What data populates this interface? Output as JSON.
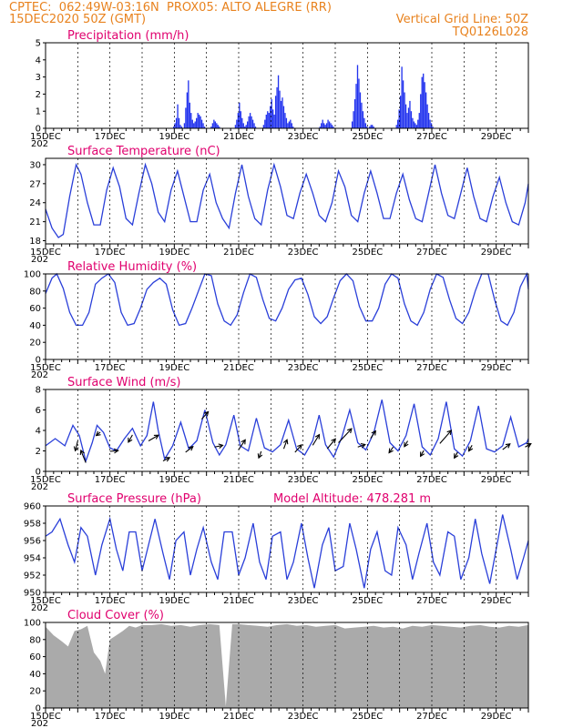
{
  "header": {
    "line1_left": "CPTEC:  062:49W-03:16N  PROX05: ALTO ALEGRE (RR)",
    "line2_left": "15DEC2020 50Z (GMT)",
    "line2_right": "Vertical Grid Line: 50Z",
    "line3_right": "TQ0126L028"
  },
  "x_axis": {
    "tick_labels": [
      "15DEC",
      "17DEC",
      "19DEC",
      "21DEC",
      "23DEC",
      "25DEC",
      "27DEC",
      "29DEC"
    ],
    "year_fragment": "202",
    "range_days": [
      0,
      15
    ],
    "labeled_days": [
      0,
      2,
      4,
      6,
      8,
      10,
      12,
      14
    ]
  },
  "colors": {
    "series": "#2a3fd9",
    "bars": "#2233ee",
    "cloud": "#aaaaaa",
    "title": "#e0006e",
    "header": "#e8821e"
  },
  "chart_data": [
    {
      "id": "precip",
      "type": "bar",
      "title": "Precipitation (mm/h)",
      "ylim": [
        0,
        5
      ],
      "yticks": [
        0,
        1,
        2,
        3,
        4,
        5
      ],
      "x_step_days": 0.0417,
      "values": [
        0,
        0,
        0,
        0,
        0,
        0,
        0,
        0,
        0,
        0,
        0,
        0,
        0,
        0,
        0,
        0,
        0,
        0,
        0,
        0,
        0,
        0,
        0,
        0,
        0,
        0,
        0,
        0,
        0,
        0,
        0,
        0,
        0,
        0,
        0,
        0,
        0,
        0,
        0,
        0,
        0,
        0,
        0,
        0,
        0,
        0,
        0,
        0,
        0,
        0,
        0,
        0,
        0,
        0,
        0,
        0,
        0,
        0,
        0,
        0,
        0,
        0,
        0,
        0,
        0,
        0,
        0,
        0,
        0,
        0,
        0,
        0,
        0,
        0,
        0,
        0,
        0,
        0,
        0,
        0,
        0,
        0,
        0,
        0,
        0,
        0,
        0,
        0,
        0,
        0,
        0,
        0,
        0,
        0,
        0,
        0.1,
        0.3,
        0.6,
        1.4,
        0.6,
        0.2,
        0.1,
        0,
        0.3,
        1.2,
        2.1,
        2.8,
        1.5,
        0.9,
        0.5,
        0.3,
        0.4,
        0.6,
        0.9,
        0.8,
        0.7,
        0.5,
        0.3,
        0.1,
        0,
        0,
        0,
        0,
        0.1,
        0.3,
        0.5,
        0.4,
        0.3,
        0.2,
        0.1,
        0,
        0,
        0,
        0,
        0,
        0,
        0,
        0,
        0,
        0,
        0,
        0.2,
        0.5,
        0.9,
        1.5,
        1.0,
        0.6,
        0.3,
        0.1,
        0.2,
        0.4,
        0.7,
        0.9,
        0.7,
        0.5,
        0.3,
        0.1,
        0,
        0,
        0,
        0,
        0,
        0.2,
        0.5,
        0.8,
        1.0,
        0.9,
        1.3,
        1.7,
        1.1,
        0.8,
        1.9,
        2.4,
        3.1,
        2.2,
        1.6,
        1.8,
        1.3,
        0.9,
        0.6,
        0.3,
        0.4,
        0.5,
        0.3,
        0.1,
        0,
        0,
        0,
        0,
        0,
        0,
        0,
        0,
        0,
        0,
        0,
        0,
        0,
        0,
        0,
        0,
        0,
        0,
        0,
        0.1,
        0.3,
        0.5,
        0.3,
        0.2,
        0.3,
        0.5,
        0.4,
        0.3,
        0.2,
        0.1,
        0,
        0,
        0,
        0,
        0,
        0,
        0,
        0,
        0,
        0,
        0,
        0,
        0,
        0.4,
        1.0,
        1.7,
        2.6,
        3.7,
        2.9,
        2.1,
        1.5,
        1.0,
        0.6,
        0.3,
        0.1,
        0,
        0.1,
        0.2,
        0.2,
        0.1,
        0,
        0,
        0,
        0,
        0,
        0,
        0,
        0,
        0,
        0,
        0,
        0,
        0,
        0,
        0,
        0,
        0.2,
        0.5,
        1.1,
        1.9,
        3.6,
        2.8,
        2.1,
        1.4,
        0.9,
        1.2,
        1.6,
        1.0,
        0.6,
        0.4,
        0.3,
        0.2,
        0.5,
        0.9,
        2.0,
        3.0,
        3.2,
        2.7,
        2.1,
        1.4,
        0.9,
        0.5,
        0.3,
        0.1
      ]
    },
    {
      "id": "temperature",
      "type": "line",
      "title": "Surface Temperature (nC)",
      "ylim": [
        17.5,
        31
      ],
      "yticks": [
        18,
        21,
        24,
        27,
        30
      ],
      "x_days": [
        0,
        0.2,
        0.4,
        0.55,
        0.75,
        0.95,
        1.1,
        1.3,
        1.5,
        1.7,
        1.9,
        2.1,
        2.3,
        2.5,
        2.7,
        2.9,
        3.1,
        3.3,
        3.5,
        3.7,
        3.9,
        4.1,
        4.3,
        4.5,
        4.7,
        4.9,
        5.1,
        5.3,
        5.5,
        5.7,
        5.9,
        6.1,
        6.3,
        6.5,
        6.7,
        6.9,
        7.1,
        7.3,
        7.5,
        7.7,
        7.9,
        8.1,
        8.3,
        8.5,
        8.7,
        8.9,
        9.1,
        9.3,
        9.5,
        9.7,
        9.9,
        10.1,
        10.3,
        10.5,
        10.7,
        10.9,
        11.1,
        11.3,
        11.5,
        11.7,
        11.9,
        12.1,
        12.3,
        12.5,
        12.7,
        12.9,
        13.1,
        13.3,
        13.5,
        13.7,
        13.9,
        14.1,
        14.3,
        14.5,
        14.7,
        14.9,
        15
      ],
      "values": [
        23,
        20,
        18.5,
        19,
        25,
        30,
        28.5,
        24,
        20.5,
        20.5,
        26,
        29.5,
        26.5,
        21.5,
        20.5,
        25.5,
        30,
        27,
        22.5,
        21,
        26,
        29,
        25,
        21,
        21,
        26,
        28.5,
        24,
        21.5,
        20,
        25.5,
        30,
        25,
        21.5,
        20.5,
        26,
        30,
        26.5,
        22,
        21.5,
        25.5,
        28.5,
        25.5,
        22,
        21,
        24,
        29,
        26.5,
        22,
        21,
        25.5,
        29,
        25.5,
        21.5,
        21.5,
        25.5,
        28.5,
        24.5,
        21.5,
        21,
        25.5,
        30,
        25.5,
        22,
        21.5,
        25.5,
        29.5,
        25,
        21.5,
        21,
        25,
        28,
        24,
        21,
        20.5,
        24,
        27
      ]
    },
    {
      "id": "humidity",
      "type": "line",
      "title": "Relative Humidity (%)",
      "ylim": [
        0,
        100
      ],
      "yticks": [
        0,
        20,
        40,
        60,
        80,
        100
      ],
      "x_days": [
        0,
        0.2,
        0.35,
        0.55,
        0.75,
        0.95,
        1.15,
        1.35,
        1.55,
        1.75,
        1.95,
        2.15,
        2.35,
        2.55,
        2.75,
        2.95,
        3.15,
        3.35,
        3.55,
        3.75,
        3.95,
        4.15,
        4.35,
        4.55,
        4.75,
        4.95,
        5.15,
        5.35,
        5.55,
        5.75,
        5.95,
        6.15,
        6.35,
        6.55,
        6.75,
        6.95,
        7.15,
        7.35,
        7.55,
        7.75,
        7.95,
        8.15,
        8.35,
        8.55,
        8.75,
        8.95,
        9.15,
        9.35,
        9.55,
        9.75,
        9.95,
        10.15,
        10.35,
        10.55,
        10.75,
        10.95,
        11.15,
        11.35,
        11.55,
        11.75,
        11.95,
        12.15,
        12.35,
        12.55,
        12.75,
        12.95,
        13.15,
        13.35,
        13.55,
        13.75,
        13.95,
        14.15,
        14.35,
        14.55,
        14.75,
        14.95,
        15
      ],
      "values": [
        77,
        95,
        100,
        83,
        55,
        40,
        40,
        55,
        88,
        95,
        100,
        90,
        55,
        40,
        42,
        60,
        82,
        90,
        95,
        88,
        58,
        40,
        42,
        60,
        80,
        100,
        98,
        65,
        45,
        40,
        52,
        78,
        100,
        96,
        70,
        48,
        45,
        60,
        82,
        93,
        95,
        76,
        50,
        42,
        50,
        72,
        92,
        100,
        92,
        62,
        45,
        45,
        60,
        88,
        100,
        95,
        65,
        45,
        40,
        55,
        82,
        100,
        96,
        70,
        48,
        42,
        55,
        80,
        100,
        100,
        70,
        45,
        40,
        55,
        85,
        100,
        82
      ]
    },
    {
      "id": "wind",
      "type": "line",
      "title": "Surface Wind (m/s)",
      "ylim": [
        0,
        8
      ],
      "yticks": [
        0,
        2,
        4,
        6,
        8
      ],
      "x_days": [
        0,
        0.3,
        0.6,
        0.85,
        1.05,
        1.25,
        1.45,
        1.6,
        1.8,
        2.0,
        2.2,
        2.45,
        2.7,
        2.95,
        3.15,
        3.35,
        3.5,
        3.7,
        3.95,
        4.2,
        4.45,
        4.7,
        4.95,
        5.2,
        5.4,
        5.6,
        5.85,
        6.05,
        6.3,
        6.55,
        6.8,
        7.05,
        7.3,
        7.55,
        7.8,
        8.05,
        8.3,
        8.5,
        8.7,
        8.95,
        9.2,
        9.45,
        9.7,
        9.95,
        10.2,
        10.45,
        10.7,
        10.95,
        11.2,
        11.45,
        11.7,
        11.95,
        12.2,
        12.45,
        12.7,
        12.95,
        13.2,
        13.45,
        13.7,
        13.95,
        14.2,
        14.45,
        14.7,
        14.95,
        15
      ],
      "values": [
        2.5,
        3.2,
        2.5,
        4.5,
        3.5,
        1.0,
        2.8,
        4.5,
        3.8,
        2.3,
        2.0,
        3.2,
        4.2,
        2.5,
        3.5,
        6.8,
        4.0,
        1.2,
        2.5,
        4.8,
        2.2,
        3.0,
        6.0,
        2.8,
        1.6,
        2.6,
        5.5,
        2.5,
        2.0,
        5.2,
        2.3,
        1.9,
        2.6,
        5.0,
        2.2,
        1.6,
        3.0,
        5.5,
        2.6,
        1.4,
        3.3,
        6.0,
        2.8,
        2.1,
        3.8,
        7.0,
        2.8,
        2.0,
        3.5,
        6.6,
        2.4,
        1.6,
        3.2,
        6.8,
        2.2,
        1.5,
        3.0,
        6.4,
        2.2,
        1.9,
        2.5,
        5.3,
        2.4,
        2.8,
        3.2
      ],
      "vectors": [
        {
          "day": 1.0,
          "u": -0.3,
          "v": -1.2
        },
        {
          "day": 1.25,
          "u": -0.6,
          "v": 1.5
        },
        {
          "day": 1.7,
          "u": -0.5,
          "v": -0.4
        },
        {
          "day": 2.0,
          "u": 1.0,
          "v": 0.1
        },
        {
          "day": 2.7,
          "u": -0.5,
          "v": -0.9
        },
        {
          "day": 3.2,
          "u": 1.2,
          "v": 0.7
        },
        {
          "day": 3.65,
          "u": 0.8,
          "v": 0.4
        },
        {
          "day": 4.35,
          "u": 0.9,
          "v": 0.7
        },
        {
          "day": 4.85,
          "u": 0.8,
          "v": 0.9
        },
        {
          "day": 5.25,
          "u": 1.0,
          "v": 0.2
        },
        {
          "day": 6.0,
          "u": 0.8,
          "v": 1.2
        },
        {
          "day": 6.7,
          "u": -0.3,
          "v": -0.8
        },
        {
          "day": 7.4,
          "u": 0.4,
          "v": 1.1
        },
        {
          "day": 7.75,
          "u": 0.8,
          "v": 0.9
        },
        {
          "day": 8.3,
          "u": 0.8,
          "v": 1.3
        },
        {
          "day": 8.75,
          "u": 1.0,
          "v": 1.2
        },
        {
          "day": 9.1,
          "u": 1.6,
          "v": 1.7
        },
        {
          "day": 9.7,
          "u": 0.9,
          "v": 0.3
        },
        {
          "day": 10.1,
          "u": 0.6,
          "v": 0.9
        },
        {
          "day": 10.8,
          "u": -0.5,
          "v": -0.7
        },
        {
          "day": 11.25,
          "u": -0.4,
          "v": -0.7
        },
        {
          "day": 11.75,
          "u": -0.4,
          "v": -0.7
        },
        {
          "day": 12.25,
          "u": 1.4,
          "v": 1.6
        },
        {
          "day": 12.8,
          "u": -0.4,
          "v": -0.7
        },
        {
          "day": 13.25,
          "u": -0.4,
          "v": -0.7
        },
        {
          "day": 14.2,
          "u": 0.9,
          "v": 0.7
        },
        {
          "day": 14.9,
          "u": 0.7,
          "v": 0.4
        }
      ]
    },
    {
      "id": "pressure",
      "type": "line",
      "title": "Surface Pressure (hPa)",
      "annotation": "Model Altitude: 478.281  m",
      "ylim": [
        950,
        960
      ],
      "yticks": [
        950,
        952,
        954,
        956,
        958,
        960
      ],
      "x_days": [
        0,
        0.2,
        0.45,
        0.7,
        0.9,
        1.1,
        1.3,
        1.55,
        1.75,
        2.0,
        2.2,
        2.4,
        2.6,
        2.8,
        3.0,
        3.2,
        3.4,
        3.65,
        3.85,
        4.05,
        4.3,
        4.5,
        4.7,
        4.9,
        5.15,
        5.35,
        5.55,
        5.8,
        6.0,
        6.2,
        6.45,
        6.65,
        6.85,
        7.05,
        7.3,
        7.5,
        7.7,
        7.95,
        8.15,
        8.35,
        8.6,
        8.8,
        9.0,
        9.25,
        9.45,
        9.65,
        9.9,
        10.1,
        10.3,
        10.55,
        10.75,
        10.95,
        11.2,
        11.4,
        11.6,
        11.85,
        12.05,
        12.25,
        12.5,
        12.7,
        12.9,
        13.15,
        13.35,
        13.55,
        13.8,
        14.0,
        14.2,
        14.45,
        14.65,
        14.85,
        15
      ],
      "values": [
        956.5,
        957.0,
        958.5,
        955.5,
        953.5,
        957.5,
        956.5,
        952.0,
        955.5,
        958.5,
        955.0,
        952.5,
        957.0,
        957.0,
        952.5,
        955.5,
        958.5,
        954.5,
        951.5,
        956.0,
        957.0,
        952.0,
        955.0,
        957.5,
        953.5,
        951.5,
        957.0,
        957.0,
        952.0,
        954.0,
        958.0,
        953.5,
        951.5,
        956.5,
        957.0,
        951.5,
        953.5,
        958.0,
        954.0,
        950.5,
        955.5,
        957.5,
        952.5,
        953.0,
        958.0,
        955.0,
        950.5,
        955.0,
        957.0,
        952.5,
        952.0,
        957.5,
        955.5,
        951.5,
        954.5,
        958.0,
        953.5,
        952.0,
        957.0,
        956.5,
        951.5,
        954.0,
        958.5,
        954.5,
        951.0,
        955.0,
        959.0,
        955.0,
        951.5,
        954.0,
        956.0
      ]
    },
    {
      "id": "cloud",
      "type": "area",
      "title": "Cloud Cover (%)",
      "ylim": [
        0,
        100
      ],
      "yticks": [
        0,
        20,
        40,
        60,
        80,
        100
      ],
      "x_days": [
        0,
        0.25,
        0.5,
        0.7,
        0.9,
        1.1,
        1.3,
        1.5,
        1.7,
        1.85,
        2.0,
        2.2,
        2.4,
        2.6,
        2.8,
        3.0,
        3.3,
        3.6,
        3.9,
        4.2,
        4.5,
        4.8,
        5.1,
        5.4,
        5.6,
        5.8,
        6.0,
        6.3,
        6.6,
        6.9,
        7.2,
        7.5,
        7.8,
        8.1,
        8.4,
        8.7,
        9.0,
        9.3,
        9.6,
        9.9,
        10.2,
        10.5,
        10.8,
        11.1,
        11.4,
        11.7,
        12.0,
        12.3,
        12.6,
        12.9,
        13.2,
        13.5,
        13.8,
        14.1,
        14.4,
        14.7,
        15
      ],
      "values": [
        95,
        85,
        78,
        72,
        90,
        92,
        96,
        65,
        55,
        40,
        80,
        85,
        90,
        96,
        94,
        97,
        97,
        98,
        96,
        97,
        95,
        97,
        98,
        97,
        2,
        98,
        98,
        97,
        96,
        95,
        97,
        98,
        96,
        97,
        95,
        96,
        97,
        93,
        94,
        95,
        96,
        94,
        95,
        93,
        96,
        95,
        97,
        96,
        95,
        94,
        96,
        97,
        95,
        94,
        96,
        95,
        97
      ]
    }
  ]
}
